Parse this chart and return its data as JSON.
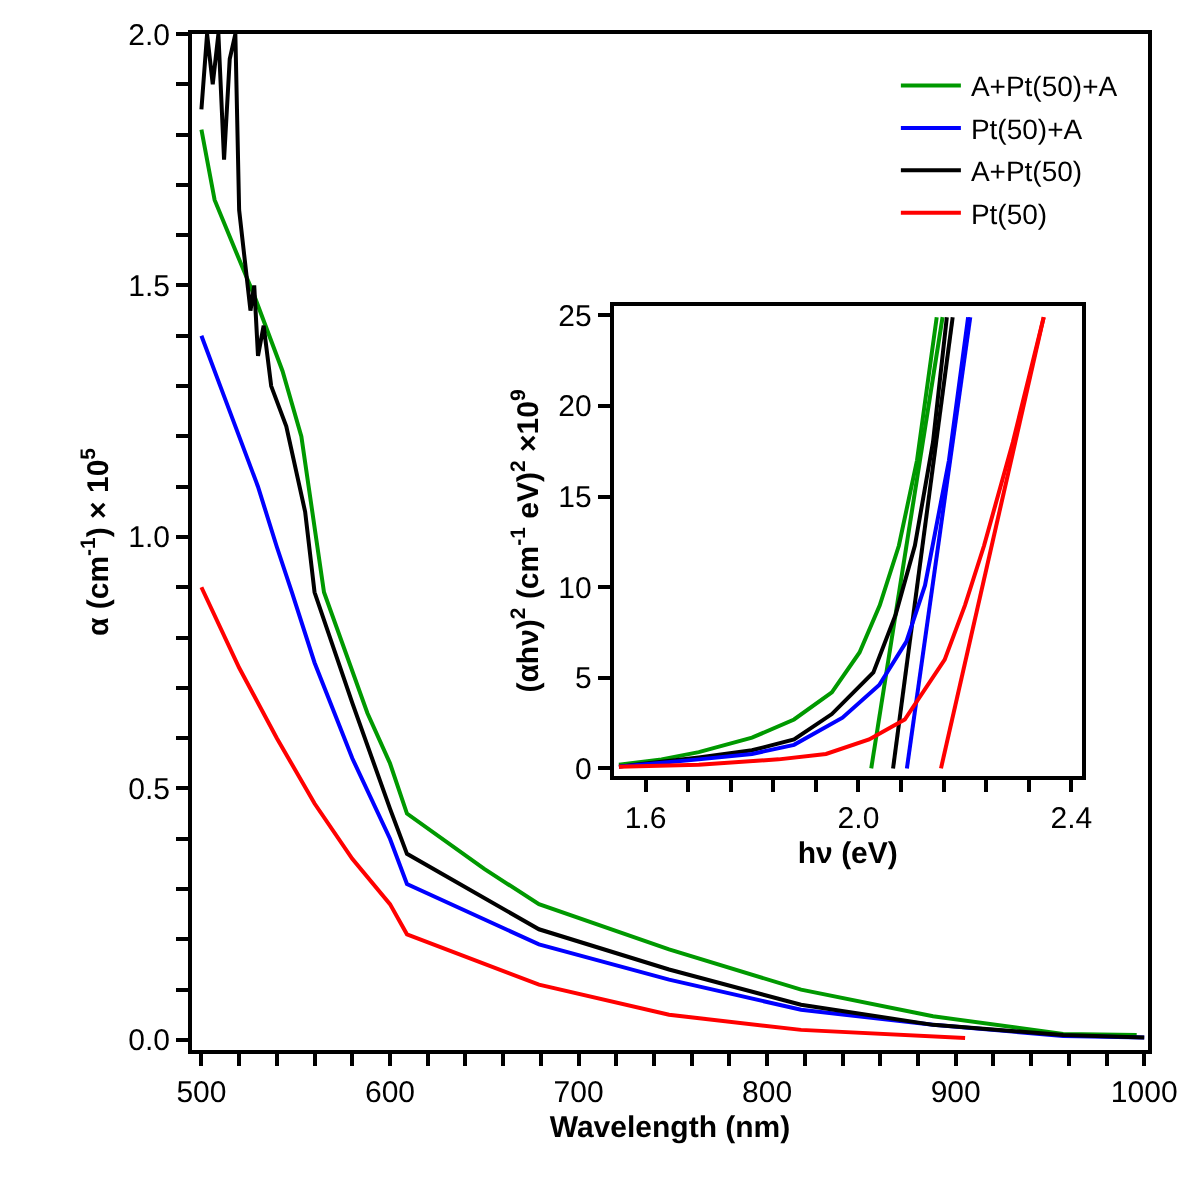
{
  "chart_data": [
    {
      "type": "line",
      "xlabel": "Wavelength (nm)",
      "ylabel": "α (cm$^{-1}$) × 10$^{5}$",
      "xlim": [
        495,
        1002
      ],
      "ylim": [
        -0.02,
        2.0
      ],
      "xticks": [
        500,
        {
          "value": 520,
          "label": null
        },
        {
          "value": 540,
          "label": null
        },
        {
          "value": 560,
          "label": null
        },
        {
          "value": 580,
          "label": null
        },
        600,
        {
          "value": 620,
          "label": null
        },
        {
          "value": 640,
          "label": null
        },
        {
          "value": 660,
          "label": null
        },
        {
          "value": 680,
          "label": null
        },
        700,
        {
          "value": 720,
          "label": null
        },
        {
          "value": 740,
          "label": null
        },
        {
          "value": 760,
          "label": null
        },
        {
          "value": 780,
          "label": null
        },
        800,
        {
          "value": 820,
          "label": null
        },
        {
          "value": 840,
          "label": null
        },
        {
          "value": 860,
          "label": null
        },
        {
          "value": 880,
          "label": null
        },
        900,
        {
          "value": 920,
          "label": null
        },
        {
          "value": 940,
          "label": null
        },
        {
          "value": 960,
          "label": null
        },
        {
          "value": 980,
          "label": null
        },
        1000
      ],
      "yticks": [
        {
          "value": 0,
          "label": "0.0"
        },
        {
          "value": 0.1,
          "label": null
        },
        {
          "value": 0.2,
          "label": null
        },
        {
          "value": 0.3,
          "label": null
        },
        {
          "value": 0.4,
          "label": null
        },
        0.5,
        {
          "value": 0.6,
          "label": null
        },
        {
          "value": 0.7,
          "label": null
        },
        {
          "value": 0.8,
          "label": null
        },
        {
          "value": 0.9,
          "label": null
        },
        {
          "value": 1.0,
          "label": "1.0"
        },
        {
          "value": 1.1,
          "label": null
        },
        {
          "value": 1.2,
          "label": null
        },
        {
          "value": 1.3,
          "label": null
        },
        {
          "value": 1.4,
          "label": null
        },
        1.5,
        {
          "value": 1.6,
          "label": null
        },
        {
          "value": 1.7,
          "label": null
        },
        {
          "value": 1.8,
          "label": null
        },
        {
          "value": 1.9,
          "label": null
        },
        {
          "value": 2.0,
          "label": "2.0"
        }
      ],
      "legend": "top right",
      "line_style": "solid",
      "marker": "none",
      "series": [
        {
          "name": "A+Pt(50)+A",
          "color": "#009900",
          "x": [
            500,
            507,
            518,
            528,
            543,
            553,
            565,
            588,
            600,
            609,
            650,
            679,
            748,
            818,
            888,
            957,
            996
          ],
          "values": [
            1.81,
            1.67,
            1.57,
            1.48,
            1.33,
            1.2,
            0.89,
            0.65,
            0.55,
            0.45,
            0.34,
            0.27,
            0.18,
            0.1,
            0.047,
            0.012,
            0.01
          ]
        },
        {
          "name": "Pt(50)+A",
          "color": "#0000ff",
          "x": [
            500,
            510,
            520,
            530,
            540,
            548,
            560,
            580,
            600,
            609,
            679,
            748,
            818,
            888,
            957,
            1000
          ],
          "values": [
            1.4,
            1.3,
            1.2,
            1.1,
            0.98,
            0.89,
            0.75,
            0.56,
            0.4,
            0.31,
            0.19,
            0.12,
            0.06,
            0.03,
            0.008,
            0.005
          ]
        },
        {
          "name": "A+Pt(50)",
          "color": "#000000",
          "x": [
            500,
            503,
            506,
            509,
            512,
            515,
            518,
            520,
            523,
            526,
            528,
            530,
            533,
            537,
            545,
            555,
            560,
            580,
            600,
            609,
            679,
            748,
            818,
            888,
            957,
            1000
          ],
          "values": [
            1.85,
            2.0,
            1.9,
            2.0,
            1.75,
            1.95,
            2.0,
            1.65,
            1.55,
            1.45,
            1.5,
            1.36,
            1.42,
            1.3,
            1.22,
            1.05,
            0.89,
            0.67,
            0.46,
            0.37,
            0.22,
            0.14,
            0.07,
            0.03,
            0.01,
            0.005
          ]
        },
        {
          "name": "Pt(50)",
          "color": "#ff0000",
          "x": [
            500,
            520,
            540,
            560,
            580,
            600,
            609,
            679,
            748,
            818,
            905
          ],
          "values": [
            0.9,
            0.74,
            0.6,
            0.47,
            0.36,
            0.27,
            0.21,
            0.11,
            0.05,
            0.02,
            0.004
          ]
        }
      ]
    },
    {
      "type": "line",
      "xlabel": "hν (eV)",
      "ylabel": "(αhν)$^{2}$ (cm$^{-1}$ eV)$^{2}$ ×10$^{9}$",
      "xlim": [
        1.54,
        2.42
      ],
      "ylim": [
        -0.4,
        25.5
      ],
      "xticks": [
        {
          "value": 1.6,
          "label": "1.6"
        },
        {
          "value": 1.68,
          "label": null
        },
        {
          "value": 1.76,
          "label": null
        },
        {
          "value": 1.84,
          "label": null
        },
        {
          "value": 1.92,
          "label": null
        },
        {
          "value": 2.0,
          "label": "2.0"
        },
        {
          "value": 2.08,
          "label": null
        },
        {
          "value": 2.16,
          "label": null
        },
        {
          "value": 2.24,
          "label": null
        },
        {
          "value": 2.32,
          "label": null
        },
        {
          "value": 2.4,
          "label": "2.4"
        }
      ],
      "yticks": [
        0,
        5,
        10,
        15,
        20,
        25
      ],
      "legend": false,
      "line_style": "solid",
      "marker": "none",
      "series": [
        {
          "color": "#009900",
          "x": [
            1.55,
            1.63,
            1.7,
            1.8,
            1.879,
            1.95,
            2.002,
            2.04,
            2.076,
            2.11,
            2.147
          ],
          "values": [
            0.2,
            0.5,
            0.9,
            1.7,
            2.7,
            4.2,
            6.4,
            9.0,
            12.3,
            17.0,
            24.9
          ]
        },
        {
          "color": "#009900",
          "x": [
            2.024,
            2.158
          ],
          "values": [
            0,
            24.9
          ]
        },
        {
          "color": "#000000",
          "x": [
            1.55,
            1.7,
            1.8,
            1.879,
            1.95,
            2.028,
            2.07,
            2.106,
            2.14,
            2.166
          ],
          "values": [
            0.1,
            0.6,
            1.0,
            1.6,
            3.0,
            5.3,
            8.5,
            12.3,
            18.0,
            24.9
          ]
        },
        {
          "color": "#000000",
          "x": [
            2.065,
            2.177
          ],
          "values": [
            0,
            24.9
          ]
        },
        {
          "color": "#0000ff",
          "x": [
            1.55,
            1.7,
            1.8,
            1.879,
            1.97,
            2.039,
            2.09,
            2.125,
            2.17,
            2.206
          ],
          "values": [
            0.1,
            0.5,
            0.8,
            1.3,
            2.8,
            4.6,
            7.0,
            10.1,
            17.0,
            24.9
          ]
        },
        {
          "color": "#0000ff",
          "x": [
            2.091,
            2.21
          ],
          "values": [
            0,
            24.9
          ]
        },
        {
          "color": "#ff0000",
          "x": [
            1.55,
            1.7,
            1.85,
            1.939,
            2.02,
            2.087,
            2.162,
            2.2,
            2.236,
            2.29,
            2.348
          ],
          "values": [
            0.1,
            0.2,
            0.5,
            0.8,
            1.6,
            2.7,
            6.0,
            9.0,
            12.3,
            18.0,
            24.9
          ]
        },
        {
          "color": "#ff0000",
          "x": [
            2.155,
            2.348
          ],
          "values": [
            0,
            24.9
          ]
        }
      ]
    }
  ]
}
